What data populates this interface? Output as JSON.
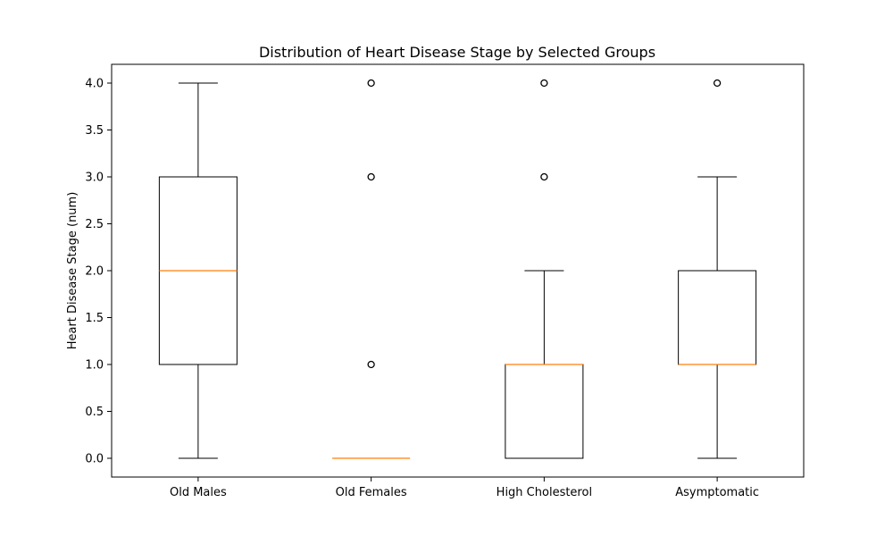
{
  "chart_data": {
    "type": "boxplot",
    "title": "Distribution of Heart Disease Stage by Selected Groups",
    "xlabel": "",
    "ylabel": "Heart Disease Stage (num)",
    "ylim": [
      -0.2,
      4.2
    ],
    "yticks": [
      0.0,
      0.5,
      1.0,
      1.5,
      2.0,
      2.5,
      3.0,
      3.5,
      4.0
    ],
    "ytick_labels": [
      "0.0",
      "0.5",
      "1.0",
      "1.5",
      "2.0",
      "2.5",
      "3.0",
      "3.5",
      "4.0"
    ],
    "grid": false,
    "categories": [
      "Old Males",
      "Old Females",
      "High Cholesterol",
      "Asymptomatic"
    ],
    "boxes": [
      {
        "whisker_low": 0,
        "q1": 1,
        "median": 2,
        "q3": 3,
        "whisker_high": 4,
        "outliers": []
      },
      {
        "whisker_low": 0,
        "q1": 0,
        "median": 0,
        "q3": 0,
        "whisker_high": 0,
        "outliers": [
          1,
          3,
          4
        ]
      },
      {
        "whisker_low": 0,
        "q1": 0,
        "median": 1,
        "q3": 1,
        "whisker_high": 2,
        "outliers": [
          3,
          4
        ]
      },
      {
        "whisker_low": 0,
        "q1": 1,
        "median": 1,
        "q3": 2,
        "whisker_high": 3,
        "outliers": [
          4
        ]
      }
    ],
    "colors": {
      "box": "#000000",
      "median": "#ff7f0e",
      "outlier": "#000000"
    }
  }
}
